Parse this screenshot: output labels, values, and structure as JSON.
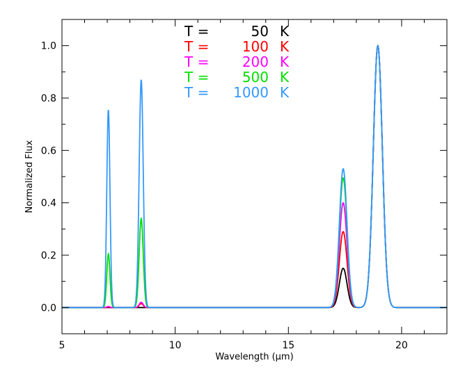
{
  "chart_data": {
    "type": "line",
    "xlabel": "Wavelength (μm)",
    "ylabel": "Normalized Flux",
    "xlim": [
      5,
      22
    ],
    "ylim": [
      -0.1,
      1.1
    ],
    "x_ticks": [
      "5",
      "10",
      "15",
      "20"
    ],
    "y_ticks": [
      "0.0",
      "0.2",
      "0.4",
      "0.6",
      "0.8",
      "1.0"
    ],
    "grid": false,
    "legend_position": "top-center",
    "legend": [
      {
        "prefix": "T =",
        "value": "50",
        "unit": "K",
        "color": "#000000"
      },
      {
        "prefix": "T =",
        "value": "100",
        "unit": "K",
        "color": "#ff0000"
      },
      {
        "prefix": "T =",
        "value": "200",
        "unit": "K",
        "color": "#ff00ff"
      },
      {
        "prefix": "T =",
        "value": "500",
        "unit": "K",
        "color": "#00e000"
      },
      {
        "prefix": "T =",
        "value": "1000",
        "unit": "K",
        "color": "#3399ff"
      }
    ],
    "peak_centers": [
      7.05,
      8.5,
      17.42,
      18.95
    ],
    "peak_widths": [
      0.07,
      0.09,
      0.17,
      0.2
    ],
    "series": [
      {
        "name": "T = 50 K",
        "color": "#000000",
        "peak_heights": [
          0.0,
          0.0,
          0.15,
          1.0
        ]
      },
      {
        "name": "T = 100 K",
        "color": "#ff0000",
        "peak_heights": [
          0.002,
          0.015,
          0.29,
          1.0
        ]
      },
      {
        "name": "T = 200 K",
        "color": "#ff00ff",
        "peak_heights": [
          0.004,
          0.02,
          0.4,
          1.0
        ]
      },
      {
        "name": "T = 500 K",
        "color": "#00e000",
        "peak_heights": [
          0.205,
          0.34,
          0.495,
          1.0
        ]
      },
      {
        "name": "T = 1000 K",
        "color": "#3399ff",
        "peak_heights": [
          0.755,
          0.87,
          0.53,
          1.0
        ]
      }
    ]
  }
}
